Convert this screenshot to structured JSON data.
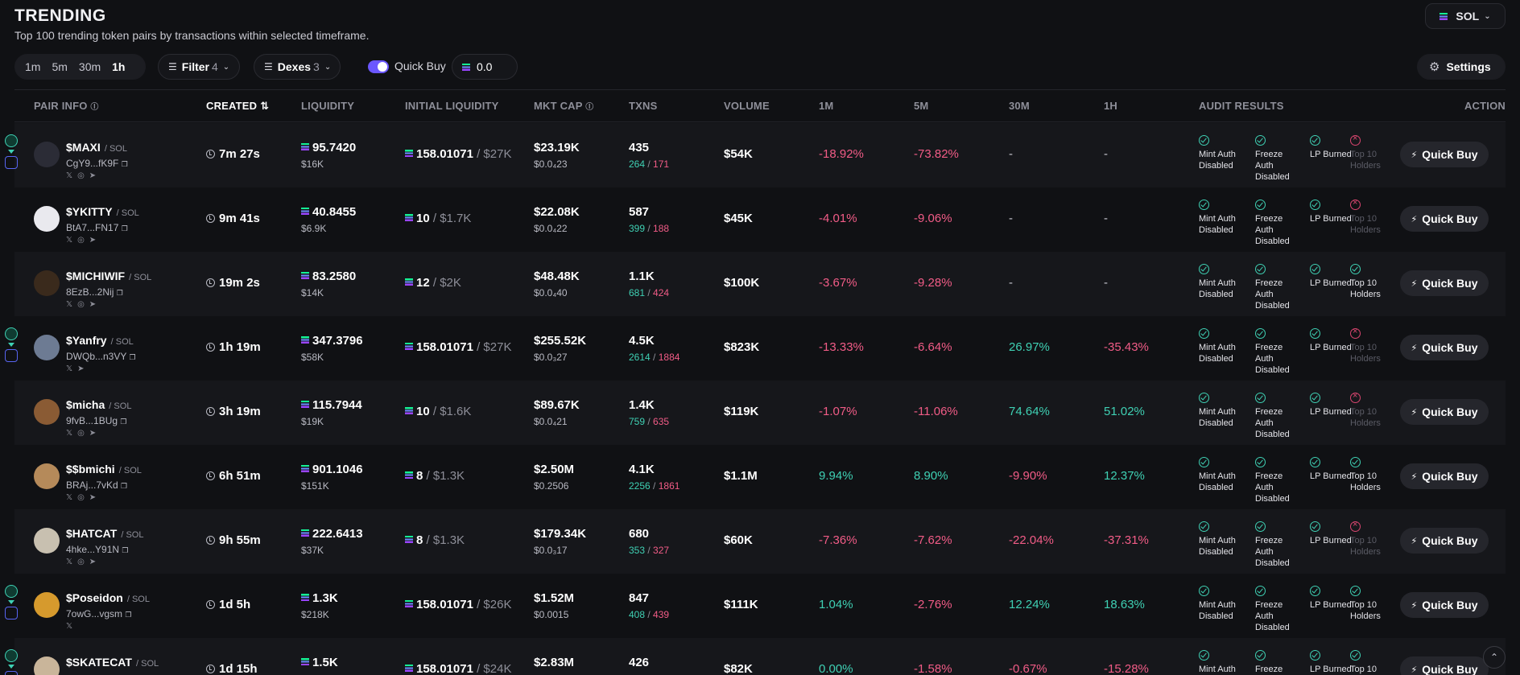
{
  "header": {
    "title": "TRENDING",
    "subtitle": "Top 100 trending token pairs by transactions within selected timeframe.",
    "chain": "SOL"
  },
  "toolbar": {
    "timeframes": [
      "1m",
      "5m",
      "30m",
      "1h"
    ],
    "active_timeframe": "1h",
    "filter_label": "Filter",
    "filter_count": "4",
    "dexes_label": "Dexes",
    "dexes_count": "3",
    "quick_buy_label": "Quick Buy",
    "quick_buy_toggle": true,
    "quick_buy_value": "0.0",
    "settings_label": "Settings"
  },
  "columns": {
    "pair_info": "PAIR INFO",
    "created": "CREATED",
    "liquidity": "LIQUIDITY",
    "initial_liquidity": "INITIAL LIQUIDITY",
    "mkt_cap": "MKT CAP",
    "txns": "TXNS",
    "volume": "VOLUME",
    "m1": "1M",
    "m5": "5M",
    "m30": "30M",
    "h1": "1H",
    "audit": "AUDIT RESULTS",
    "action": "ACTION"
  },
  "audit_labels": {
    "mint": "Mint Auth Disabled",
    "freeze": "Freeze Auth Disabled",
    "lp": "LP Burned",
    "top10": "Top 10 Holders"
  },
  "action_label": "Quick Buy",
  "colors": {
    "positive": "#3fd1b4",
    "negative": "#f25c87",
    "accent": "#6b57ff"
  },
  "rows": [
    {
      "name": "$MAXI",
      "chain": "SOL",
      "address": "CgY9...fK9F",
      "age": "7m 27s",
      "liquidity": "95.7420",
      "liquidity_usd": "$16K",
      "init_liq": "158.01071",
      "init_liq_usd": "$27K",
      "mkt_cap": "$23.19K",
      "price": "$0.0₄23",
      "txns": "435",
      "buys": "264",
      "sells": "171",
      "volume": "$54K",
      "m1": "-18.92%",
      "m5": "-73.82%",
      "m30": "-",
      "h1": "-",
      "top10_ok": false,
      "socials": "x-icon web-icon telegram-icon",
      "side_badges": true
    },
    {
      "name": "$YKITTY",
      "chain": "SOL",
      "address": "BtA7...FN17",
      "age": "9m 41s",
      "liquidity": "40.8455",
      "liquidity_usd": "$6.9K",
      "init_liq": "10",
      "init_liq_usd": "$1.7K",
      "mkt_cap": "$22.08K",
      "price": "$0.0₄22",
      "txns": "587",
      "buys": "399",
      "sells": "188",
      "volume": "$45K",
      "m1": "-4.01%",
      "m5": "-9.06%",
      "m30": "-",
      "h1": "-",
      "top10_ok": false,
      "socials": "x-icon web-icon telegram-icon",
      "side_badges": false
    },
    {
      "name": "$MICHIWIF",
      "chain": "SOL",
      "address": "8EzB...2Nij",
      "age": "19m 2s",
      "liquidity": "83.2580",
      "liquidity_usd": "$14K",
      "init_liq": "12",
      "init_liq_usd": "$2K",
      "mkt_cap": "$48.48K",
      "price": "$0.0₄40",
      "txns": "1.1K",
      "buys": "681",
      "sells": "424",
      "volume": "$100K",
      "m1": "-3.67%",
      "m5": "-9.28%",
      "m30": "-",
      "h1": "-",
      "top10_ok": true,
      "socials": "x-icon web-icon telegram-icon",
      "side_badges": false
    },
    {
      "name": "$Yanfry",
      "chain": "SOL",
      "address": "DWQb...n3VY",
      "age": "1h 19m",
      "liquidity": "347.3796",
      "liquidity_usd": "$58K",
      "init_liq": "158.01071",
      "init_liq_usd": "$27K",
      "mkt_cap": "$255.52K",
      "price": "$0.0₃27",
      "txns": "4.5K",
      "buys": "2614",
      "sells": "1884",
      "volume": "$823K",
      "m1": "-13.33%",
      "m5": "-6.64%",
      "m30": "26.97%",
      "h1": "-35.43%",
      "top10_ok": false,
      "socials": "x-icon telegram-icon",
      "side_badges": true
    },
    {
      "name": "$micha",
      "chain": "SOL",
      "address": "9fvB...1BUg",
      "age": "3h 19m",
      "liquidity": "115.7944",
      "liquidity_usd": "$19K",
      "init_liq": "10",
      "init_liq_usd": "$1.6K",
      "mkt_cap": "$89.67K",
      "price": "$0.0₄21",
      "txns": "1.4K",
      "buys": "759",
      "sells": "635",
      "volume": "$119K",
      "m1": "-1.07%",
      "m5": "-11.06%",
      "m30": "74.64%",
      "h1": "51.02%",
      "top10_ok": false,
      "socials": "x-icon web-icon telegram-icon",
      "side_badges": false
    },
    {
      "name": "$$bmichi",
      "chain": "SOL",
      "address": "BRAj...7vKd",
      "age": "6h 51m",
      "liquidity": "901.1046",
      "liquidity_usd": "$151K",
      "init_liq": "8",
      "init_liq_usd": "$1.3K",
      "mkt_cap": "$2.50M",
      "price": "$0.2506",
      "txns": "4.1K",
      "buys": "2256",
      "sells": "1861",
      "volume": "$1.1M",
      "m1": "9.94%",
      "m5": "8.90%",
      "m30": "-9.90%",
      "h1": "12.37%",
      "top10_ok": true,
      "socials": "x-icon web-icon telegram-icon",
      "side_badges": false
    },
    {
      "name": "$HATCAT",
      "chain": "SOL",
      "address": "4hke...Y91N",
      "age": "9h 55m",
      "liquidity": "222.6413",
      "liquidity_usd": "$37K",
      "init_liq": "8",
      "init_liq_usd": "$1.3K",
      "mkt_cap": "$179.34K",
      "price": "$0.0₃17",
      "txns": "680",
      "buys": "353",
      "sells": "327",
      "volume": "$60K",
      "m1": "-7.36%",
      "m5": "-7.62%",
      "m30": "-22.04%",
      "h1": "-37.31%",
      "top10_ok": false,
      "socials": "x-icon web-icon telegram-icon",
      "side_badges": false
    },
    {
      "name": "$Poseidon",
      "chain": "SOL",
      "address": "7owG...vgsm",
      "age": "1d 5h",
      "liquidity": "1.3K",
      "liquidity_usd": "$218K",
      "init_liq": "158.01071",
      "init_liq_usd": "$26K",
      "mkt_cap": "$1.52M",
      "price": "$0.0015",
      "txns": "847",
      "buys": "408",
      "sells": "439",
      "volume": "$111K",
      "m1": "1.04%",
      "m5": "-2.76%",
      "m30": "12.24%",
      "h1": "18.63%",
      "top10_ok": true,
      "socials": "x-icon",
      "side_badges": true
    },
    {
      "name": "$SKATECAT",
      "chain": "SOL",
      "address": "",
      "age": "1d 15h",
      "liquidity": "1.5K",
      "liquidity_usd": "",
      "init_liq": "158.01071",
      "init_liq_usd": "$24K",
      "mkt_cap": "$2.83M",
      "price": "",
      "txns": "426",
      "buys": "",
      "sells": "",
      "volume": "$82K",
      "m1": "0.00%",
      "m5": "-1.58%",
      "m30": "-0.67%",
      "h1": "-15.28%",
      "top10_ok": true,
      "socials": "",
      "side_badges": true
    }
  ]
}
